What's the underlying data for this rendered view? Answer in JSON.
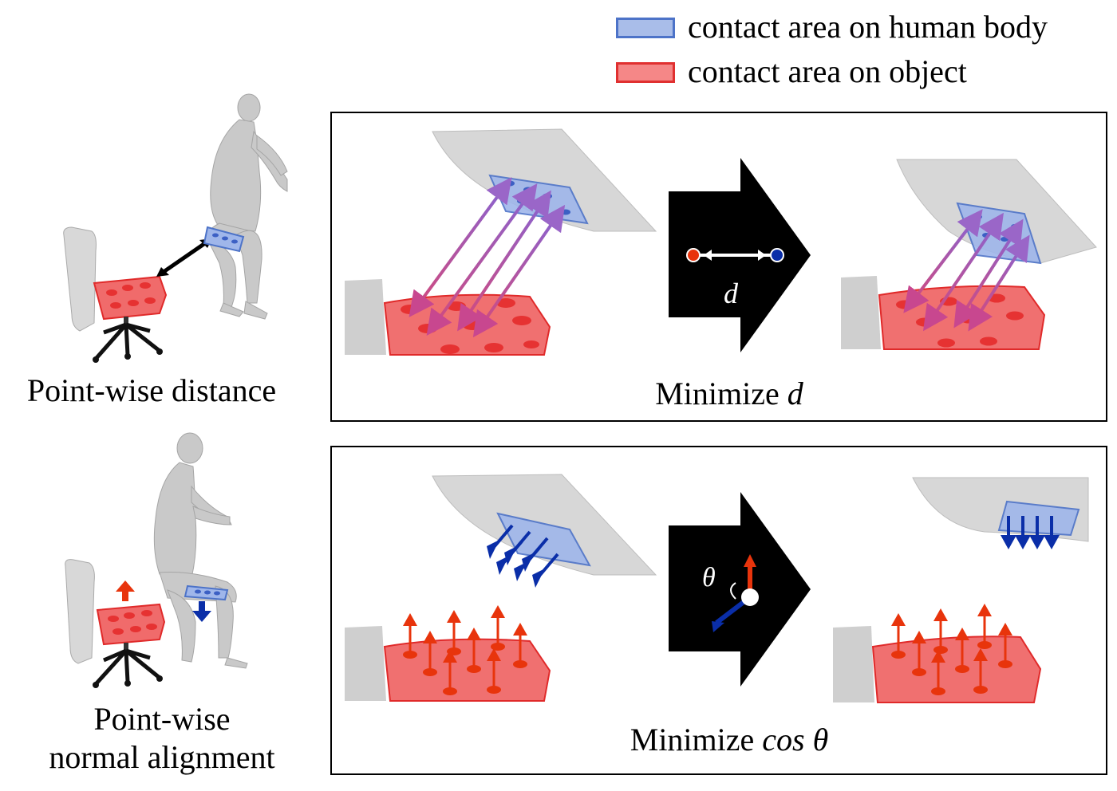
{
  "legend": {
    "human": {
      "label": "contact area on human body",
      "color": "#8fa9df"
    },
    "object": {
      "label": "contact area on object",
      "color": "#f28080"
    }
  },
  "rows": [
    {
      "left_caption_lines": [
        "Point-wise distance"
      ],
      "panel_caption_prefix": "Minimize ",
      "panel_caption_symbol": "d",
      "arrow_symbol": "d"
    },
    {
      "left_caption_lines": [
        "Point-wise",
        "normal alignment"
      ],
      "panel_caption_prefix": "Minimize ",
      "panel_caption_symbol": "cos θ",
      "arrow_symbol": "θ"
    }
  ],
  "colors": {
    "human_contact": "#7b98d8",
    "object_contact": "#f25a5a",
    "normal_human": "#0a2ea8",
    "normal_object": "#e8340c",
    "distance_arrow": "#a35fae",
    "mesh_gray": "#cfcfcf"
  }
}
